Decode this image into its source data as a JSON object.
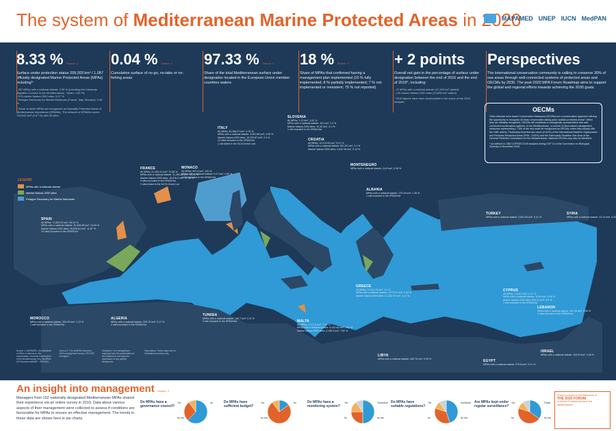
{
  "header": {
    "title_prefix": "The system of",
    "title_bold": "Mediterranean Marine Protected Areas",
    "title_suffix": "in 2020",
    "logos": [
      "MAPAMED",
      "UNEP",
      "IUCN",
      "MedPAN"
    ]
  },
  "stats": [
    {
      "value": "8.33 %",
      "source": "Source: 1",
      "text": "Surface under protection status 209,303 km² / 1,087 officially designated Marine Protected Areas (MPAs) including*:",
      "sub": "- 257 MPAs with a national statute: 3.35 % (including the Cetacean Migration Corridor in the Mediterranean - Spain: 1.84 %)\n- 979 marine Natura 2000 sites: 5.27 %\n- Pelagos Sanctuary for Marine Mammals (France, Italy, Monaco): 3.49 %",
      "note": "* Some of these MPAs are recognized as Specially Protected Areas of Mediterranean Importance (SPAMIs). The network of SPAMIs covers 728,942 km² (2.67 %) with 39 sites."
    },
    {
      "value": "0.04 %",
      "source": "Source: 1",
      "text": "Cumulative surface of no-go, no-take or no-fishing areas"
    },
    {
      "value": "97.33 %",
      "source": "Source: 1",
      "text": "Share of the total Mediterranean surface under designation located in the European Union member countries waters"
    },
    {
      "value": "18 %",
      "source": "Source: 2",
      "text": "Share of MPAs that confirmed having a management plan implemented (10 % fully implemented; 8 % partially implemented; 7 % not implemented or inexistent; 75 % not reported)"
    },
    {
      "value": "+ 2 points",
      "source": "",
      "text": "Overall net gain in the percentage of surface under designation between the end of 2016 and the end of 2019*, including:",
      "sub": "- 21 MPAs with a national statute (47,499 km² added)\n- 140 marine Natura 2000 sites (13,698 km² added)",
      "note": "* 2016 figures have been recalculated in the scope of the 2020 analysis"
    },
    {
      "value": "Perspectives",
      "source": "",
      "text": "The international conservation community is calling to conserve 30% of sea areas through well-connected systems of protected areas and OECMs by 2030. The post-2020 MPA Forum Roadmap aims to support the global and regional efforts towards achieving the 2030 goals."
    }
  ],
  "oecms": {
    "title": "OECMs",
    "text": "Other effective area-based Conservation Measures (OECMs) are a conservation approach offering the opportunity to recognize de facto conservation taking place outside protected areas*. When they are officially recognized, OECMs will contribute to ecologically representative and well-connected conservation systems. In the Mediterranean, a number of area-based management measures representing 1.75% of the sea could be recognized as OECMs, when they comply with the CBD criteria. Particularly fisheries ban zones (0.64%) of the International Maritime Organization and Fisheries Restricted Areas (FRA - 0.62%) and the Particularly Sensitive Sea Area of the General Fisheries Commission for the Mediterranean. National OECMs may also be identified.",
    "note": "* As defined in CBD COP/DEC/14/8 adopted during COP 14 of the Convention on Biological Diversity in November 2018"
  },
  "legend": {
    "title": "LEGEND",
    "items": [
      {
        "label": "MPAs with a national statute",
        "color": "#e2904a"
      },
      {
        "label": "Marine Natura 2000 sites",
        "color": "#7aa85a"
      },
      {
        "label": "Pelagos Sanctuary for Marine Mammals",
        "color": "#4f9ccf"
      }
    ]
  },
  "countries": [
    {
      "name": "SLOVENIA",
      "text": "All MPAs: 1.13 km², 4.91 %\nMPAs with a national statute: 161 km², 1.4 %\nMarine Natura 2000 sites: 10.42 km², 3.1 %\n1 site included in the SPAMI list"
    },
    {
      "name": "ITALY",
      "text": "All MPAs: 52,286.57 km², 9.76 %\nMPAs with a national statute: 3,261.86 km², 0.59 %\nMarine Natura 2000 sites: 15,709.87 km², 2.9 %\n12 sites included in the SPAMI list\n1 site listed in the IUCN Green List"
    },
    {
      "name": "CROATIA",
      "text": "All MPAs: 12,279.53 km², 9.21 %\nMPAs with a national statute: 601.52 km², 1.1 %\nMarine Natura 2000 sites: 2,542.38 km², 5.14 %"
    },
    {
      "name": "MONTENEGRO",
      "text": "MPAs with a national statute: 24.8 km², 0.39 %"
    },
    {
      "name": "FRANCE",
      "text": "All MPAs: 51,463.41 km², 70.68 %\nMPAs with a national statute: 11,283.83 km², 15.13 %\nMarine Natura 2000 sites: 15,678.9 km², 17.95 %\n5 sites included in the SPAMI list\n2 sites listed in the IUCN Green List"
    },
    {
      "name": "MONACO",
      "text": "All MPAs: 287.6 km², 100 %\nMPAs with a national statute: 0.27 km², 0.09 %\n1 site included in the SPAMI list"
    },
    {
      "name": "ALBANIA",
      "text": "MPAs with a national statute: 175.19 km², 1.35 %\n1 site included in the SPAMI list"
    },
    {
      "name": "SPAIN",
      "text": "All MPAs: 71,825.29 km², 26.34 %\nMPAs with a national statute: 30,428.08 km², 13.25 %\nMarine Natura 2000 sites: 28,826.54 km², 11.87 %\n10 sites included in the SPAMI list"
    },
    {
      "name": "TURKEY",
      "text": "MPAs with a national statute: 2,503.09 km², 0.21 %"
    },
    {
      "name": "SYRIA",
      "text": "MPAs with a national statute: 23.13 km², 0.23 %"
    },
    {
      "name": "GREECE",
      "text": "All MPAs: 23,041.25 km², 4.2 %\nMPAs with a national statute: 1,075.31 km², 0.44 %\nMarine Natura 2000 sites: 21,282.97 km², 4.12 %"
    },
    {
      "name": "CYPRUS",
      "text": "All MPAs: 1,610.6 km², 6.17 %\nMPAs with a national statute: 10.66 km², 0.05 %\nMarine Natura 2000 sites: 530.31 km², 0.8 %\n1 site included in the SPAMI list"
    },
    {
      "name": "LEBANON",
      "text": "MPAs with a national statute: 101.95 km², 0.54 %\n2 sites included in the SPAMI list"
    },
    {
      "name": "MOROCCO",
      "text": "MPAs with a national statute: 200.29 km², 1.13 %\n1 site included in the SPAMI list"
    },
    {
      "name": "ALGERIA",
      "text": "MPAs with a national statute: 220.76 km², 0.17 %\n2 sites included in the SPAMI list"
    },
    {
      "name": "TUNISIA",
      "text": "MPAs with a national statute: 140.7 km², 0.11 %\n3 site included in the SPAMI list"
    },
    {
      "name": "MALTA",
      "text": "All MPAs: 4,137.5 km², 7.81 %\nMPAs with a national statute: 4,132.48 km², 7.81 %\nMarine Natura 2000 sites: 4,135.5 km², 7.82 %"
    },
    {
      "name": "LIBYA",
      "text": "MPAs with a national statute: 400.79 km², 0.39 %"
    },
    {
      "name": "ISRAEL",
      "text": "MPAs with a national statute: 118.33 km², 0.46 %"
    },
    {
      "name": "EGYPT",
      "text": "MPAs with a national statute: 373.8 km², 0.21 %"
    }
  ],
  "sources": [
    "Source 1: MAPAMED, the database on Sites of interest for the conservation of marine environment in the Mediterranean Sea. MedPAN, UN Environment/MAP - SPA/RAC.",
    "Source 2: The MedPAN network's 2020 management survey, 152 MPA managers.",
    "Disclaimer: The designations employed and the presentation of the material do not imply the expression of any opinion whatsoever.",
    "Boundaries: These maps are for illustrative purposes only."
  ],
  "insight": {
    "title": "An insight into management",
    "source": "Source: 2",
    "text": "Managers from 152 nationally designated Mediterranean MPAs shared their experience via an online survey in 2019. Data about various aspects of their management were collected to assess if conditions are favourable for MPAs to ensure an effective management. The trends in these data are shown here in pie charts.",
    "questions": [
      {
        "q": "Do MPAs have a governance council?",
        "labels": [
          "Yes",
          "No",
          "No info"
        ],
        "values": [
          62,
          28,
          10
        ]
      },
      {
        "q": "Do MPAs have sufficient budget?",
        "labels": [
          "Yes",
          "No",
          "No info"
        ],
        "values": [
          15,
          75,
          10
        ]
      },
      {
        "q": "Do MPAs have a monitoring system?",
        "labels": [
          "Yes",
          "Occasional",
          "No",
          "No info"
        ],
        "values": [
          50,
          25,
          15,
          10
        ]
      },
      {
        "q": "Do MPAs have suitable regulations?",
        "labels": [
          "Yes",
          "Insufficient",
          "No",
          "No info"
        ],
        "values": [
          45,
          35,
          10,
          10
        ]
      },
      {
        "q": "Are MPAs kept under regular surveillance?",
        "labels": [
          "Yes",
          "Partial",
          "No",
          "No info"
        ],
        "values": [
          35,
          45,
          10,
          10
        ]
      }
    ]
  },
  "forum": {
    "pre": "Poster produced in the framework of",
    "name": "THE 2020 FORUM",
    "sub": "of Marine Protected Areas in the Mediterranean"
  },
  "colors": {
    "orange": "#e2632a",
    "navy": "#1e3a58",
    "sea": "#2f9ad6",
    "land": "#2b4866"
  }
}
